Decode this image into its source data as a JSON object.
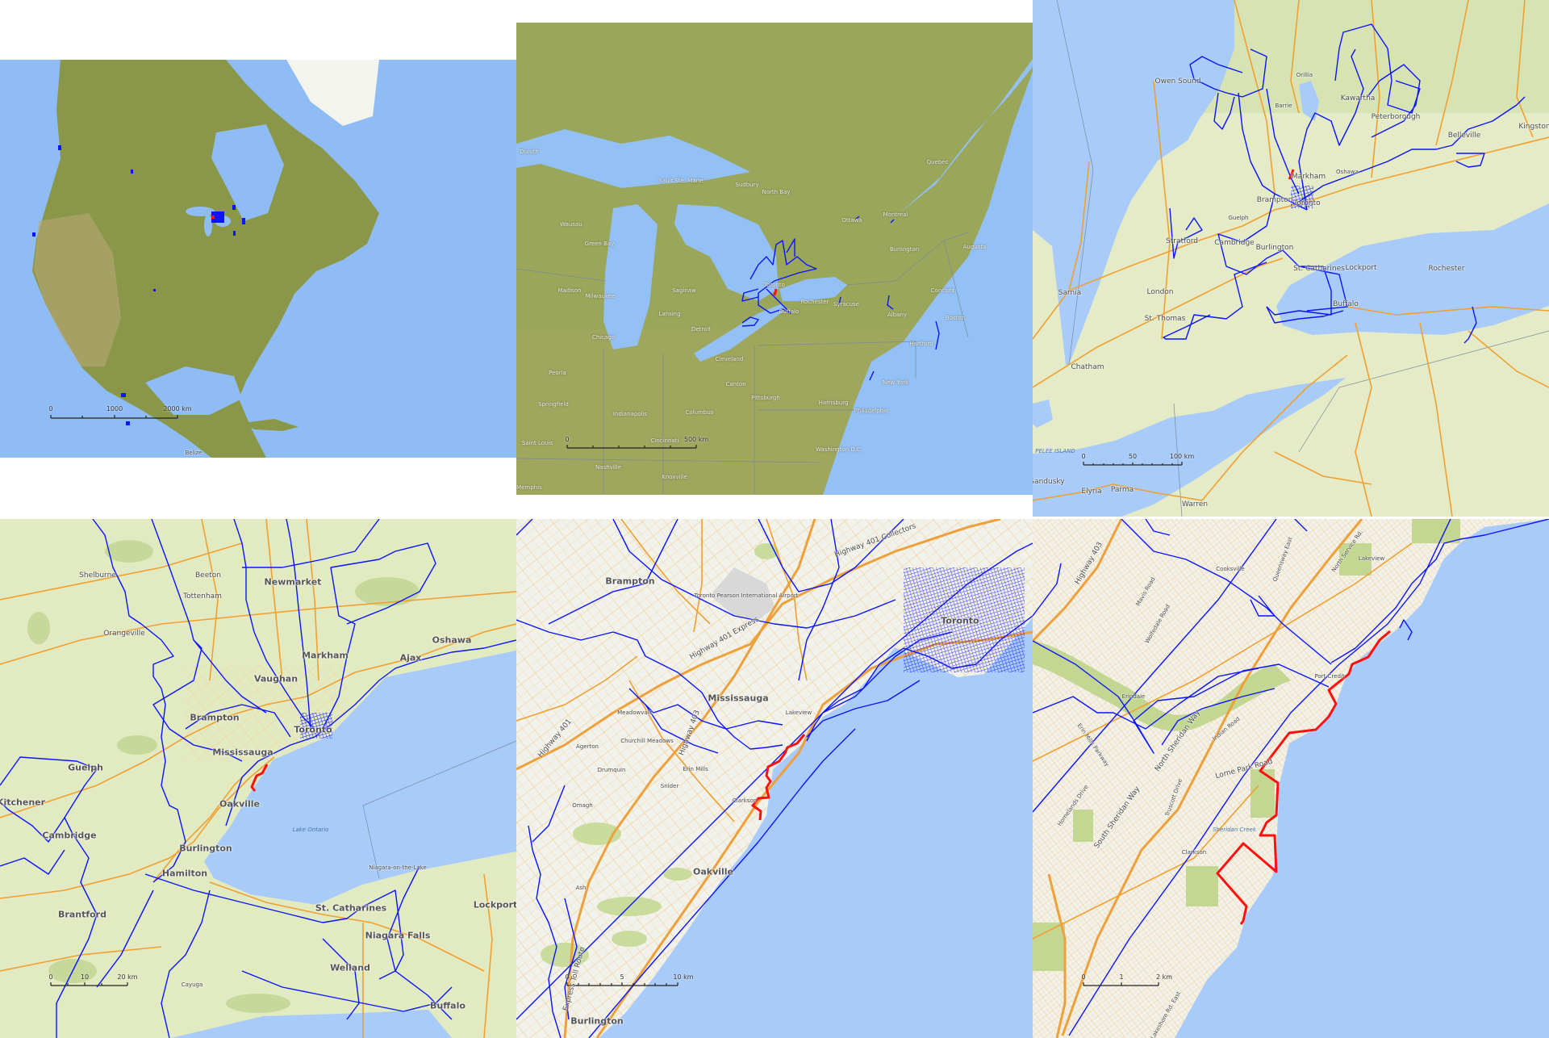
{
  "colors": {
    "track": "#0a14ff",
    "highlight_track": "#ff1010",
    "water_satellite": "#8fbcf5",
    "water_road": "#a8cbfa",
    "land_road": "#e4ebc6",
    "road": "#f0a030"
  },
  "panels": [
    {
      "name": "continent",
      "labels": [
        "Belize"
      ],
      "scale": [
        "0",
        "1000",
        "2000 km"
      ]
    },
    {
      "name": "great-lakes-region",
      "labels": [
        "Duluth",
        "Sault Ste. Marie",
        "Sudbury",
        "North Bay",
        "Ottawa",
        "Montreal",
        "Quebec",
        "Wausau",
        "Green Bay",
        "Madison",
        "Milwaukee",
        "Saginaw",
        "Lansing",
        "Detroit",
        "Chicago",
        "Toronto",
        "Rochester",
        "Syracuse",
        "Buffalo",
        "Cleveland",
        "Burlington",
        "Augusta",
        "Concord",
        "Boston",
        "Albany",
        "Hartford",
        "New York",
        "Pittsburgh",
        "Harrisburg",
        "Philadelphia",
        "Columbus",
        "Indianapolis",
        "Cincinnati",
        "Washington D.C.",
        "Springfield",
        "Peoria",
        "Saint Louis",
        "Canton",
        "Nashville",
        "Knoxville",
        "Memphis"
      ],
      "scale": [
        "0",
        "500 km"
      ]
    },
    {
      "name": "southern-ontario",
      "labels": [
        "Owen Sound",
        "Kawartha",
        "Peterborough",
        "Belleville",
        "Kingston",
        "Barrie",
        "Orillia",
        "Toronto",
        "Brampton",
        "Markham",
        "Oshawa",
        "Guelph",
        "Cambridge",
        "Stratford",
        "Burlington",
        "London",
        "Sarnia",
        "St. Thomas",
        "Chatham",
        "St. Catharines",
        "Lockport",
        "Rochester",
        "Buffalo",
        "Sandusky",
        "Elyria",
        "Parma",
        "Warren",
        "PELEE ISLAND"
      ],
      "scale": [
        "0",
        "50",
        "100 km"
      ]
    },
    {
      "name": "golden-horseshoe",
      "labels": [
        "Newmarket",
        "Markham",
        "Vaughan",
        "Brampton",
        "Toronto",
        "Mississauga",
        "Oakville",
        "Burlington",
        "Hamilton",
        "Cambridge",
        "Guelph",
        "Kitchener",
        "Brantford",
        "Oshawa",
        "Ajax",
        "St. Catharines",
        "Niagara Falls",
        "Welland",
        "Lockport",
        "Buffalo",
        "Orangeville",
        "Shelburne",
        "Tottenham",
        "Beeton",
        "Lake Ontario",
        "Niagara-on-the-Lake",
        "Cayuga"
      ],
      "scale": [
        "0",
        "10",
        "20 km"
      ]
    },
    {
      "name": "mississauga-toronto",
      "labels": [
        "Brampton",
        "Mississauga",
        "Toronto",
        "Oakville",
        "Burlington",
        "Highway 401 Express",
        "Highway 401 Collectors",
        "Meadowvale",
        "Churchill Meadows",
        "Erin Mills",
        "Clarkson",
        "Lakeview",
        "Highway 401",
        "Highway 403",
        "Express Toll Route",
        "Agerton",
        "Drumquin",
        "Omagh",
        "Snider",
        "Ash",
        "Toronto Pearson International Airport"
      ],
      "scale": [
        "0",
        "5",
        "10 km"
      ]
    },
    {
      "name": "mississauga-waterfront",
      "labels": [
        "Highway 403",
        "Lorne Park Road",
        "Clarkson",
        "Erindale",
        "Lakeview",
        "North Sheridan Way",
        "South Sheridan Way",
        "Indian Road",
        "Mavis Road",
        "Wolfedale Road",
        "Homelands Drive",
        "Truscott Drive",
        "Queensway East",
        "North Service Rd.",
        "Erin Mills Parkway",
        "Lakeshore Rd. East",
        "Port Credit",
        "Sheridan Creek",
        "Cooksville"
      ],
      "scale": [
        "0",
        "1",
        "2 km"
      ]
    }
  ]
}
